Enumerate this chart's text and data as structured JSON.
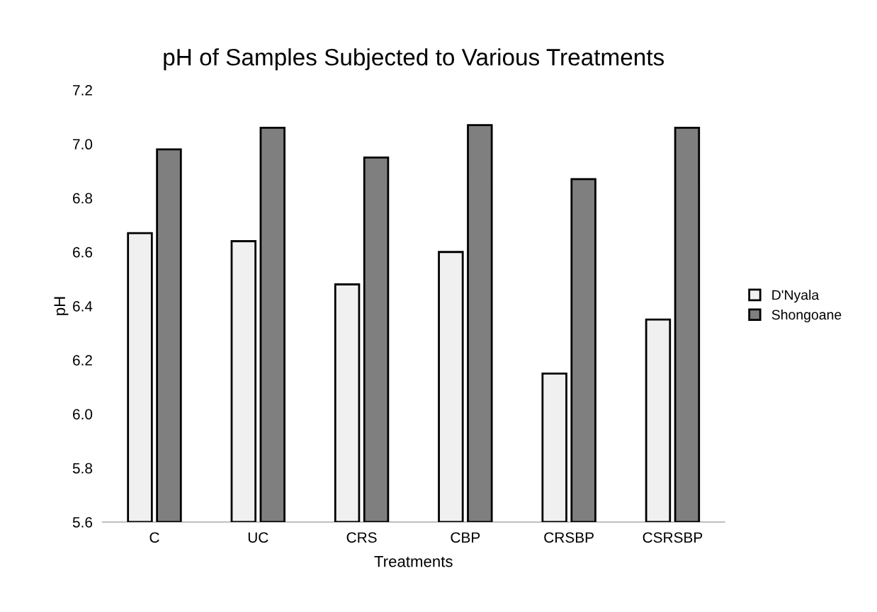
{
  "chart_data": {
    "type": "bar",
    "title": "pH of Samples Subjected to Various Treatments",
    "xlabel": "Treatments",
    "ylabel": "pH",
    "categories": [
      "C",
      "UC",
      "CRS",
      "CBP",
      "CRSBP",
      "CSRSBP"
    ],
    "series": [
      {
        "name": "D'Nyala",
        "color": "#f0f0f0",
        "values": [
          6.67,
          6.64,
          6.48,
          6.6,
          6.15,
          6.35
        ]
      },
      {
        "name": "Shongoane",
        "color": "#7f7f7f",
        "values": [
          6.98,
          7.06,
          6.95,
          7.07,
          6.87,
          7.06
        ]
      }
    ],
    "ylim": [
      5.6,
      7.2
    ],
    "yticks": [
      5.6,
      5.8,
      {
        "value": 6,
        "label": "6.0"
      },
      6.2,
      6.4,
      6.6,
      6.8,
      {
        "value": 7,
        "label": "7.0"
      },
      7.2
    ],
    "grid": false,
    "legend": "right"
  }
}
